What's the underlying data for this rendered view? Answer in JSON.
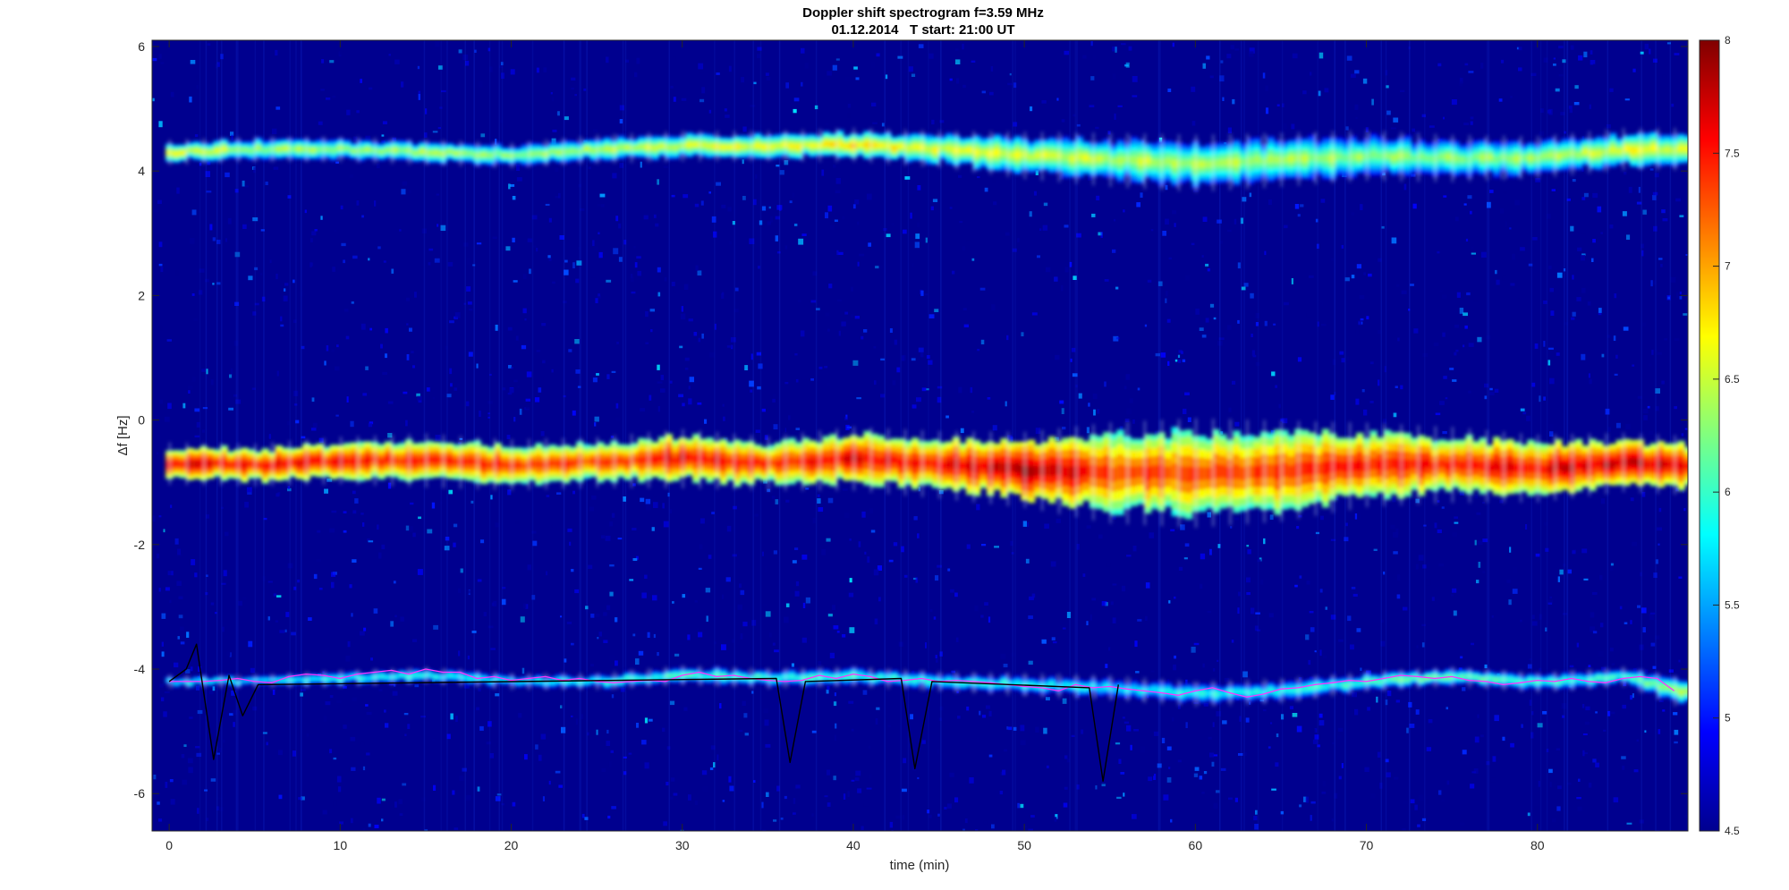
{
  "chart_data": {
    "type": "heatmap",
    "title": "Doppler shift spectrogram f=3.59 MHz",
    "subtitle": "01.12.2014   T start: 21:00 UT",
    "xlabel": "time (min)",
    "ylabel": "Δf [Hz]",
    "xlim": [
      -1,
      88.8
    ],
    "ylim": [
      -6.6,
      6.1
    ],
    "xticks": [
      0,
      10,
      20,
      30,
      40,
      50,
      60,
      70,
      80
    ],
    "yticks": [
      -6,
      -4,
      -2,
      0,
      2,
      4,
      6
    ],
    "colorbar": {
      "min": 4.5,
      "max": 8,
      "ticks": [
        "4.5",
        "5",
        "5.5",
        "6",
        "6.5",
        "7",
        "7.5",
        "8"
      ],
      "colormap": "jet"
    },
    "background_color": "#00008f",
    "bands": [
      {
        "label_level": "high",
        "center_x": [
          0,
          5,
          10,
          15,
          20,
          25,
          30,
          35,
          40,
          45,
          50,
          55,
          60,
          65,
          70,
          75,
          80,
          85,
          88
        ],
        "center_y": [
          4.3,
          4.35,
          4.35,
          4.3,
          4.25,
          4.35,
          4.4,
          4.4,
          4.42,
          4.35,
          4.25,
          4.18,
          4.12,
          4.18,
          4.25,
          4.2,
          4.22,
          4.35,
          4.35
        ],
        "half_width": [
          0.15,
          0.15,
          0.15,
          0.15,
          0.15,
          0.17,
          0.18,
          0.18,
          0.2,
          0.22,
          0.28,
          0.32,
          0.34,
          0.32,
          0.3,
          0.28,
          0.25,
          0.25,
          0.25
        ],
        "intensity": [
          6.6,
          6.4,
          6.4,
          6.4,
          6.3,
          6.4,
          6.6,
          6.6,
          6.8,
          6.6,
          6.5,
          6.5,
          6.4,
          6.4,
          6.3,
          6.3,
          6.4,
          6.6,
          6.6
        ]
      },
      {
        "label_level": "main",
        "center_x": [
          0,
          5,
          10,
          15,
          20,
          25,
          30,
          35,
          40,
          45,
          50,
          55,
          60,
          65,
          70,
          75,
          80,
          85,
          88
        ],
        "center_y": [
          -0.7,
          -0.72,
          -0.65,
          -0.65,
          -0.72,
          -0.68,
          -0.62,
          -0.7,
          -0.62,
          -0.72,
          -0.8,
          -0.85,
          -0.85,
          -0.82,
          -0.72,
          -0.72,
          -0.78,
          -0.68,
          -0.72
        ],
        "half_width": [
          0.25,
          0.25,
          0.28,
          0.32,
          0.3,
          0.3,
          0.35,
          0.32,
          0.38,
          0.4,
          0.45,
          0.6,
          0.65,
          0.6,
          0.5,
          0.45,
          0.4,
          0.35,
          0.35
        ],
        "intensity": [
          7.6,
          7.5,
          7.5,
          7.4,
          7.4,
          7.3,
          7.6,
          7.4,
          7.6,
          7.5,
          7.8,
          7.4,
          7.3,
          7.4,
          7.5,
          7.5,
          7.6,
          7.8,
          7.6
        ]
      },
      {
        "label_level": "low",
        "center_x": [
          0,
          5,
          10,
          15,
          20,
          25,
          30,
          35,
          40,
          45,
          50,
          55,
          60,
          65,
          70,
          75,
          80,
          85,
          88
        ],
        "center_y": [
          -4.2,
          -4.2,
          -4.15,
          -4.1,
          -4.2,
          -4.2,
          -4.1,
          -4.15,
          -4.12,
          -4.2,
          -4.25,
          -4.3,
          -4.4,
          -4.35,
          -4.2,
          -4.12,
          -4.22,
          -4.12,
          -4.35
        ],
        "half_width": [
          0.08,
          0.08,
          0.1,
          0.1,
          0.1,
          0.1,
          0.12,
          0.12,
          0.12,
          0.12,
          0.14,
          0.15,
          0.15,
          0.15,
          0.12,
          0.12,
          0.12,
          0.12,
          0.18
        ],
        "intensity": [
          5.8,
          5.8,
          5.9,
          5.9,
          5.8,
          5.9,
          6.1,
          6.0,
          6.0,
          5.9,
          5.9,
          5.8,
          5.9,
          5.9,
          6.1,
          6.2,
          6.0,
          6.0,
          6.4
        ]
      }
    ],
    "series": [
      {
        "color": "#ff33ff",
        "x": [
          0,
          1,
          2,
          3,
          4,
          5,
          6,
          7,
          8,
          9,
          10,
          11,
          12,
          13,
          14,
          15,
          16,
          17,
          18,
          19,
          20,
          21,
          22,
          23,
          24,
          25,
          26,
          27,
          28,
          29,
          30,
          31,
          32,
          33,
          34,
          35,
          36,
          37,
          38,
          39,
          40,
          41,
          42,
          43,
          44,
          45,
          46,
          47,
          48,
          49,
          50,
          51,
          52,
          53,
          54,
          55,
          56,
          57,
          58,
          59,
          60,
          61,
          62,
          63,
          64,
          65,
          66,
          67,
          68,
          69,
          70,
          71,
          72,
          73,
          74,
          75,
          76,
          77,
          78,
          79,
          80,
          81,
          82,
          83,
          84,
          85,
          86,
          87,
          88
        ],
        "y": [
          -4.2,
          -4.2,
          -4.2,
          -4.18,
          -4.15,
          -4.2,
          -4.22,
          -4.12,
          -4.08,
          -4.1,
          -4.15,
          -4.08,
          -4.05,
          -4.02,
          -4.08,
          -4.0,
          -4.05,
          -4.05,
          -4.15,
          -4.12,
          -4.18,
          -4.15,
          -4.12,
          -4.18,
          -4.15,
          -4.2,
          -4.22,
          -4.2,
          -4.18,
          -4.2,
          -4.1,
          -4.05,
          -4.12,
          -4.1,
          -4.15,
          -4.18,
          -4.2,
          -4.18,
          -4.1,
          -4.15,
          -4.08,
          -4.12,
          -4.2,
          -4.18,
          -4.15,
          -4.2,
          -4.18,
          -4.2,
          -4.22,
          -4.25,
          -4.28,
          -4.3,
          -4.35,
          -4.25,
          -4.3,
          -4.28,
          -4.32,
          -4.35,
          -4.38,
          -4.42,
          -4.35,
          -4.3,
          -4.38,
          -4.45,
          -4.4,
          -4.32,
          -4.3,
          -4.25,
          -4.22,
          -4.18,
          -4.2,
          -4.15,
          -4.1,
          -4.12,
          -4.15,
          -4.12,
          -4.18,
          -4.2,
          -4.25,
          -4.22,
          -4.18,
          -4.2,
          -4.15,
          -4.2,
          -4.22,
          -4.15,
          -4.12,
          -4.15,
          -4.35
        ]
      },
      {
        "color": "#000000",
        "x": [
          0,
          1,
          1.6,
          2.6,
          3.5,
          4.3,
          5.2,
          35.5,
          36.3,
          37.2,
          42.8,
          43.6,
          44.6,
          53.8,
          54.6,
          55.5
        ],
        "y": [
          -4.2,
          -4.0,
          -3.6,
          -5.45,
          -4.1,
          -4.75,
          -4.25,
          -4.15,
          -5.5,
          -4.2,
          -4.15,
          -5.6,
          -4.2,
          -4.3,
          -5.8,
          -4.25
        ]
      }
    ]
  }
}
